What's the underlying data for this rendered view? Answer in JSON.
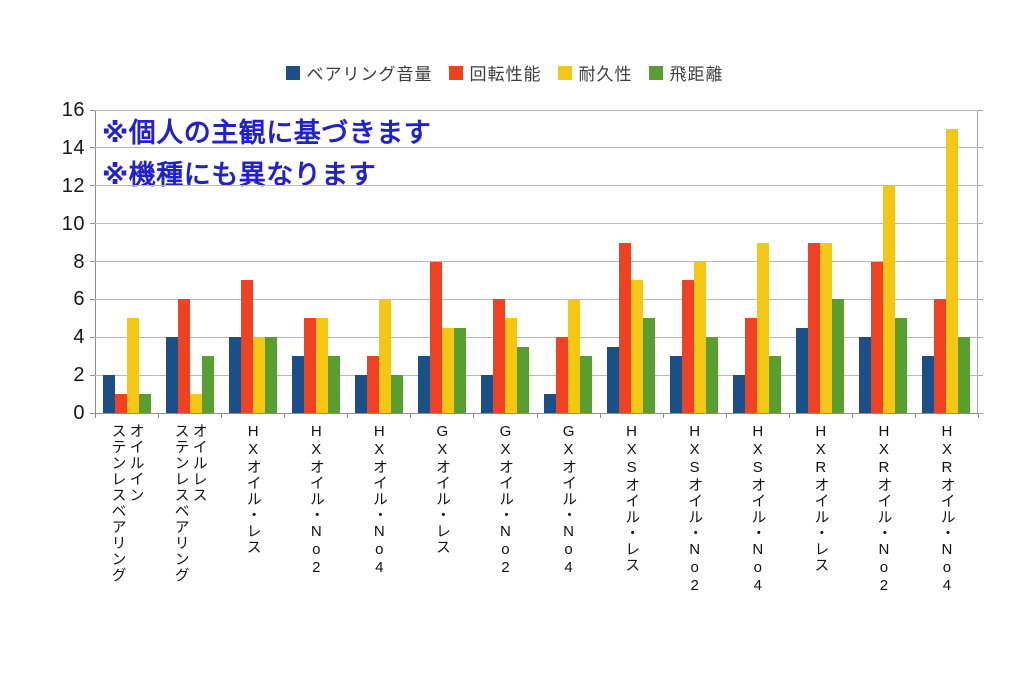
{
  "chart_data": {
    "type": "bar",
    "title": "",
    "legend_position": "top",
    "grid": true,
    "ylim": [
      0,
      16
    ],
    "yticks": [
      0,
      2,
      4,
      6,
      8,
      10,
      12,
      14,
      16
    ],
    "categories": [
      "オイルイン\nステンレスベアリング",
      "オイルレス\nステンレスベアリング",
      "HXオイル・レス",
      "HXオイル・No2",
      "HXオイル・No4",
      "GXオイル・レス",
      "GXオイル・No2",
      "GXオイル・No4",
      "HXSオイル・レス",
      "HXSオイル・No2",
      "HXSオイル・No4",
      "HXRオイル・レス",
      "HXRオイル・No2",
      "HXRオイル・No4"
    ],
    "series": [
      {
        "name": "ベアリング音量",
        "color": "#1a4f87",
        "values": [
          2,
          4,
          4,
          3,
          2,
          3,
          2,
          1,
          3.5,
          3,
          2,
          4.5,
          4,
          3
        ]
      },
      {
        "name": "回転性能",
        "color": "#ee4223",
        "values": [
          1,
          6,
          7,
          5,
          3,
          8,
          6,
          4,
          9,
          7,
          5,
          9,
          8,
          6
        ]
      },
      {
        "name": "耐久性",
        "color": "#f4c715",
        "values": [
          5,
          1,
          4,
          5,
          6,
          4.5,
          5,
          6,
          7,
          8,
          9,
          9,
          12,
          15
        ]
      },
      {
        "name": "飛距離",
        "color": "#599e31",
        "values": [
          1,
          3,
          4,
          3,
          2,
          4.5,
          3.5,
          3,
          5,
          4,
          3,
          6,
          5,
          4
        ]
      }
    ],
    "annotations": [
      "※個人の主観に基づきます",
      "※機種にも異なります"
    ],
    "annotation_color": "#2222cc"
  }
}
